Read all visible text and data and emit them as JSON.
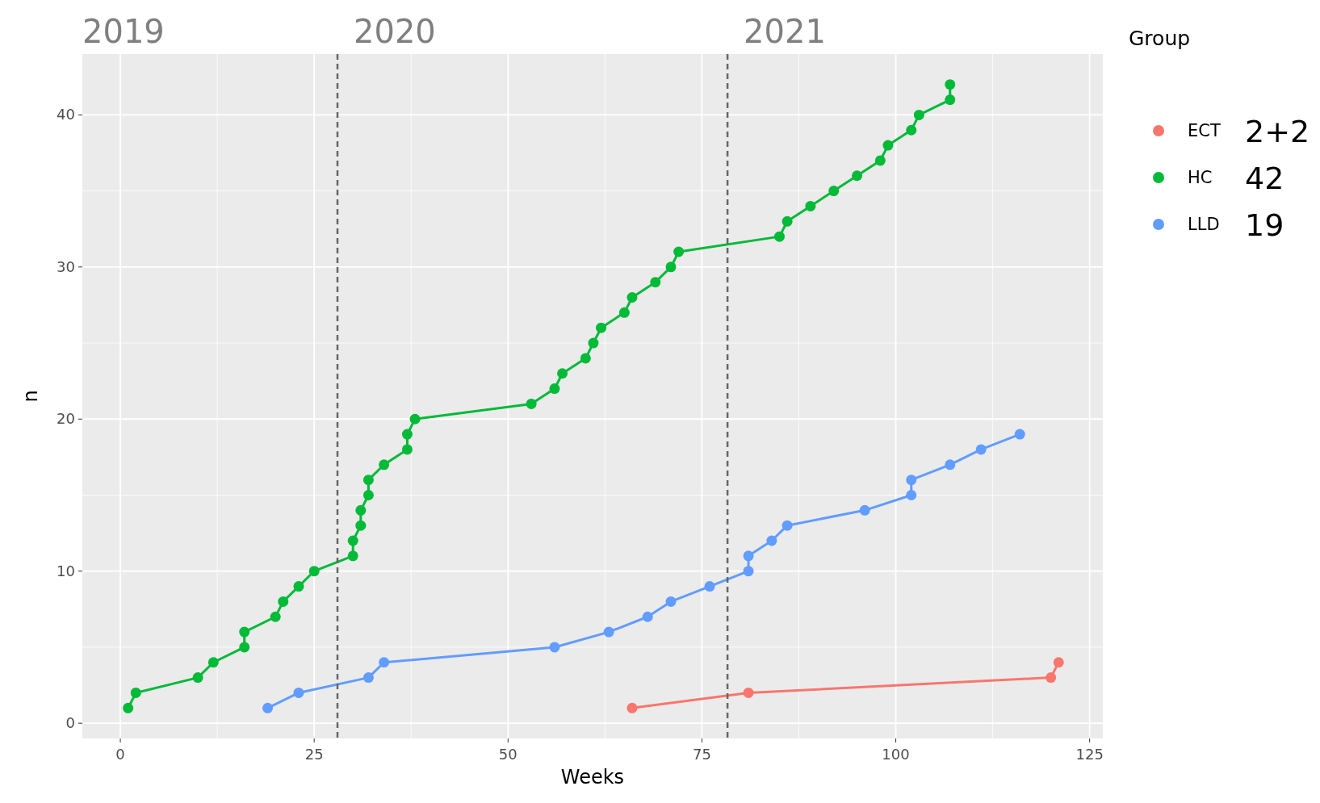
{
  "chart_data": {
    "type": "line",
    "xlabel": "Weeks",
    "ylabel": "n",
    "legend_title": "Group",
    "legend": "right",
    "grid": true,
    "marker": "circle",
    "line_style": "solid",
    "xlim": [
      -4.9,
      126.7
    ],
    "ylim": [
      -1,
      44
    ],
    "xticks": [
      0,
      25,
      50,
      75,
      100,
      125
    ],
    "yticks": [
      0,
      10,
      20,
      30,
      40
    ],
    "series": [
      {
        "name": "ECT",
        "color": "#f8766d",
        "x": [
          66,
          81,
          120,
          121
        ],
        "values": [
          1,
          2,
          3,
          4
        ]
      },
      {
        "name": "HC",
        "color": "#00ba38",
        "x": [
          1,
          2,
          10,
          12,
          16,
          16,
          20,
          21,
          23,
          25,
          30,
          30,
          31,
          31,
          32,
          32,
          34,
          37,
          37,
          38,
          53,
          56,
          57,
          60,
          61,
          62,
          65,
          66,
          69,
          71,
          72,
          85,
          86,
          89,
          92,
          95,
          98,
          99,
          102,
          103,
          107,
          107
        ],
        "values": [
          1,
          2,
          3,
          4,
          5,
          6,
          7,
          8,
          9,
          10,
          11,
          12,
          13,
          14,
          15,
          16,
          17,
          18,
          19,
          20,
          21,
          22,
          23,
          24,
          25,
          26,
          27,
          28,
          29,
          30,
          31,
          32,
          33,
          34,
          35,
          36,
          37,
          38,
          39,
          40,
          41,
          42
        ]
      },
      {
        "name": "LLD",
        "color": "#619cff",
        "x": [
          19,
          23,
          32,
          34,
          56,
          63,
          68,
          71,
          76,
          81,
          81,
          84,
          86,
          96,
          102,
          102,
          107,
          111,
          116
        ],
        "values": [
          1,
          2,
          3,
          4,
          5,
          6,
          7,
          8,
          9,
          10,
          11,
          12,
          13,
          14,
          15,
          16,
          17,
          18,
          19
        ]
      }
    ],
    "ref_lines": [
      {
        "axis": "x",
        "value": 28,
        "color": "#666666",
        "line_style": "dashed"
      },
      {
        "axis": "x",
        "value": 78.3,
        "color": "#666666",
        "line_style": "dashed"
      }
    ],
    "annotations": [
      "2019",
      "2020",
      "2021",
      "2+2",
      "42",
      "19"
    ]
  }
}
